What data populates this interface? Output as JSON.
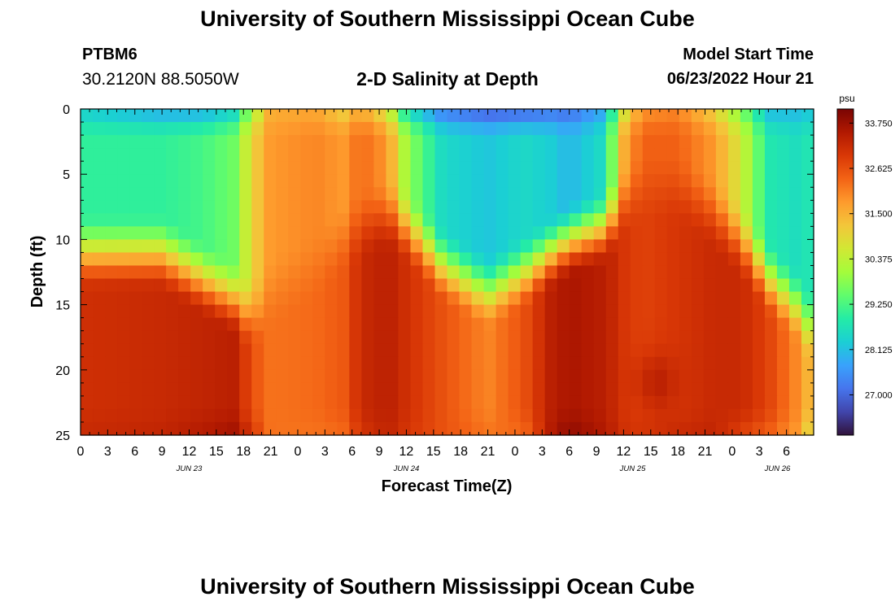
{
  "header": {
    "title": "University of Southern Mississippi Ocean Cube",
    "station_id": "PTBM6",
    "station_coords": "30.2120N  88.5050W",
    "chart_title": "2-D Salinity at Depth",
    "model_start_label": "Model Start Time",
    "model_start_value": "06/23/2022 Hour 21"
  },
  "footer": {
    "title": "University of Southern Mississippi Ocean Cube"
  },
  "colorbar": {
    "unit": "psu",
    "ticks": [
      "33.750",
      "32.625",
      "31.500",
      "30.375",
      "29.250",
      "28.125",
      "27.000"
    ],
    "range": [
      26.0,
      34.1
    ],
    "colors": [
      "#30123b",
      "#4145ab",
      "#4675ed",
      "#39a2fc",
      "#1bcfd4",
      "#24eca6",
      "#61fc6c",
      "#a4fc3b",
      "#d1e834",
      "#f3c63a",
      "#fe9b2d",
      "#f36315",
      "#d93806",
      "#b11901",
      "#7a0403"
    ]
  },
  "chart_data": {
    "type": "heatmap",
    "title": "2-D Salinity at Depth",
    "xlabel": "Forecast Time(Z)",
    "ylabel": "Depth (ft)",
    "x_range_hours": [
      0,
      81
    ],
    "y_range_ft": [
      0,
      25
    ],
    "x_tick_labels": [
      "0",
      "3",
      "6",
      "9",
      "12",
      "15",
      "18",
      "21",
      "0",
      "3",
      "6",
      "9",
      "12",
      "15",
      "18",
      "21",
      "0",
      "3",
      "6",
      "9",
      "12",
      "15",
      "18",
      "21",
      "0",
      "3",
      "6"
    ],
    "y_tick_labels": [
      "0",
      "5",
      "10",
      "15",
      "20",
      "25"
    ],
    "date_labels": [
      {
        "label": "JUN 23",
        "hour": 12
      },
      {
        "label": "JUN 24",
        "hour": 36
      },
      {
        "label": "JUN 25",
        "hour": 61
      },
      {
        "label": "JUN 26",
        "hour": 77
      }
    ],
    "grid_columns": 60,
    "grid_rows": 25,
    "salinity_profiles": [
      {
        "hour": 0,
        "surface": 28.3,
        "mid": 29.0,
        "deep": 33.1,
        "bottom": 33.2,
        "halocline_ft": 11
      },
      {
        "hour": 9,
        "surface": 27.8,
        "mid": 29.0,
        "deep": 33.2,
        "bottom": 33.3,
        "halocline_ft": 11
      },
      {
        "hour": 13.5,
        "surface": 27.8,
        "mid": 29.2,
        "deep": 33.3,
        "bottom": 33.5,
        "halocline_ft": 13
      },
      {
        "hour": 17,
        "surface": 28.3,
        "mid": 29.6,
        "deep": 33.4,
        "bottom": 33.7,
        "halocline_ft": 14.5
      },
      {
        "hour": 19,
        "surface": 30.0,
        "mid": 31.0,
        "deep": 32.6,
        "bottom": 33.0,
        "halocline_ft": 16
      },
      {
        "hour": 21,
        "surface": 31.5,
        "mid": 31.8,
        "deep": 32.2,
        "bottom": 32.2,
        "halocline_ft": 14
      },
      {
        "hour": 26,
        "surface": 31.6,
        "mid": 32.0,
        "deep": 32.3,
        "bottom": 32.2,
        "halocline_ft": 12
      },
      {
        "hour": 29,
        "surface": 31.0,
        "mid": 31.8,
        "deep": 32.5,
        "bottom": 32.3,
        "halocline_ft": 10
      },
      {
        "hour": 31,
        "surface": 31.6,
        "mid": 32.3,
        "deep": 33.2,
        "bottom": 33.0,
        "halocline_ft": 9
      },
      {
        "hour": 34,
        "surface": 30.5,
        "mid": 31.8,
        "deep": 33.4,
        "bottom": 33.3,
        "halocline_ft": 8
      },
      {
        "hour": 36,
        "surface": 28.5,
        "mid": 30.0,
        "deep": 33.1,
        "bottom": 33.0,
        "halocline_ft": 9
      },
      {
        "hour": 40,
        "surface": 27.2,
        "mid": 28.5,
        "deep": 32.6,
        "bottom": 32.6,
        "halocline_ft": 12
      },
      {
        "hour": 45,
        "surface": 26.8,
        "mid": 28.2,
        "deep": 32.0,
        "bottom": 32.2,
        "halocline_ft": 14
      },
      {
        "hour": 49,
        "surface": 26.9,
        "mid": 28.5,
        "deep": 32.6,
        "bottom": 32.3,
        "halocline_ft": 12.5
      },
      {
        "hour": 52,
        "surface": 27.1,
        "mid": 28.3,
        "deep": 33.4,
        "bottom": 33.5,
        "halocline_ft": 11
      },
      {
        "hour": 54,
        "surface": 27.0,
        "mid": 28.0,
        "deep": 33.6,
        "bottom": 33.9,
        "halocline_ft": 10
      },
      {
        "hour": 58,
        "surface": 27.8,
        "mid": 28.6,
        "deep": 33.4,
        "bottom": 33.5,
        "halocline_ft": 9
      },
      {
        "hour": 60,
        "surface": 30.5,
        "mid": 31.5,
        "deep": 33.0,
        "bottom": 33.1,
        "halocline_ft": 7
      },
      {
        "hour": 62,
        "surface": 31.8,
        "mid": 32.4,
        "deep": 32.8,
        "bottom": 33.0,
        "halocline_ft": 6
      },
      {
        "hour": 66,
        "surface": 32.0,
        "mid": 32.4,
        "deep": 33.0,
        "bottom": 33.2,
        "halocline_ft": 6
      },
      {
        "hour": 70,
        "surface": 31.0,
        "mid": 31.8,
        "deep": 33.2,
        "bottom": 33.3,
        "halocline_ft": 8
      },
      {
        "hour": 73,
        "surface": 29.6,
        "mid": 30.6,
        "deep": 33.2,
        "bottom": 32.8,
        "halocline_ft": 10
      },
      {
        "hour": 76,
        "surface": 28.0,
        "mid": 28.8,
        "deep": 32.8,
        "bottom": 32.4,
        "halocline_ft": 13
      },
      {
        "hour": 79,
        "surface": 28.0,
        "mid": 28.6,
        "deep": 32.0,
        "bottom": 31.8,
        "halocline_ft": 15
      },
      {
        "hour": 81,
        "surface": 28.2,
        "mid": 28.8,
        "deep": 31.2,
        "bottom": 30.6,
        "halocline_ft": 17
      }
    ],
    "max_salinity_hotspot": {
      "hour": 63.5,
      "depth_ft": 21,
      "value": 34.0
    }
  }
}
